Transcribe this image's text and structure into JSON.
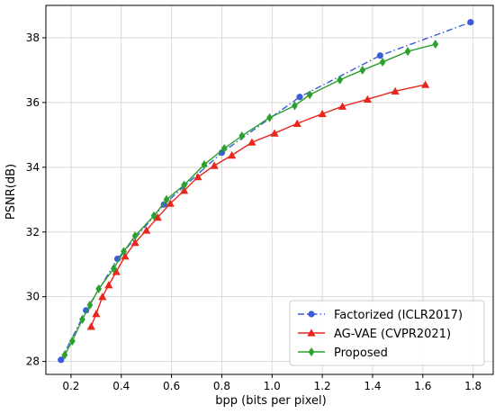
{
  "chart_data": {
    "type": "line",
    "xlabel": "bpp (bits per pixel)",
    "ylabel": "PSNR(dB)",
    "xlim": [
      0.1,
      1.88
    ],
    "ylim": [
      27.6,
      39.0
    ],
    "xticks": [
      0.2,
      0.4,
      0.6,
      0.8,
      1.0,
      1.2,
      1.4,
      1.6,
      1.8
    ],
    "xtick_labels": [
      "0.2",
      "0.4",
      "0.6",
      "0.8",
      "1.0",
      "1.2",
      "1.4",
      "1.6",
      "1.8"
    ],
    "yticks": [
      28,
      30,
      32,
      34,
      36,
      38
    ],
    "ytick_labels": [
      "28",
      "30",
      "32",
      "34",
      "36",
      "38"
    ],
    "grid": true,
    "legend_position": "lower-right",
    "series": [
      {
        "name": "Factorized (ICLR2017)",
        "color": "#3b5bdb",
        "line_style": "dash-dot",
        "marker": "circle",
        "x": [
          0.16,
          0.26,
          0.385,
          0.57,
          0.8,
          1.11,
          1.43,
          1.79
        ],
        "y": [
          28.05,
          29.58,
          31.17,
          32.85,
          34.45,
          36.17,
          37.45,
          38.48
        ]
      },
      {
        "name": "AG-VAE (CVPR2021)",
        "color": "#e8261c",
        "line_style": "solid",
        "marker": "triangle",
        "x": [
          0.28,
          0.3,
          0.325,
          0.35,
          0.38,
          0.415,
          0.455,
          0.5,
          0.545,
          0.595,
          0.65,
          0.705,
          0.77,
          0.84,
          0.92,
          1.01,
          1.1,
          1.2,
          1.28,
          1.38,
          1.49,
          1.61
        ],
        "y": [
          29.08,
          29.47,
          30.0,
          30.36,
          30.77,
          31.25,
          31.67,
          32.05,
          32.45,
          32.88,
          33.28,
          33.7,
          34.05,
          34.37,
          34.77,
          35.05,
          35.35,
          35.65,
          35.88,
          36.1,
          36.35,
          36.55
        ]
      },
      {
        "name": "Proposed",
        "color": "#2ca02c",
        "line_style": "solid",
        "marker": "diamond",
        "x": [
          0.175,
          0.205,
          0.245,
          0.275,
          0.31,
          0.37,
          0.41,
          0.455,
          0.53,
          0.58,
          0.65,
          0.73,
          0.81,
          0.88,
          0.99,
          1.09,
          1.15,
          1.27,
          1.36,
          1.44,
          1.54,
          1.65
        ],
        "y": [
          28.2,
          28.63,
          29.3,
          29.74,
          30.24,
          30.87,
          31.4,
          31.88,
          32.5,
          33.0,
          33.45,
          34.08,
          34.58,
          34.97,
          35.53,
          35.9,
          36.24,
          36.7,
          37.0,
          37.25,
          37.58,
          37.8
        ]
      }
    ]
  }
}
